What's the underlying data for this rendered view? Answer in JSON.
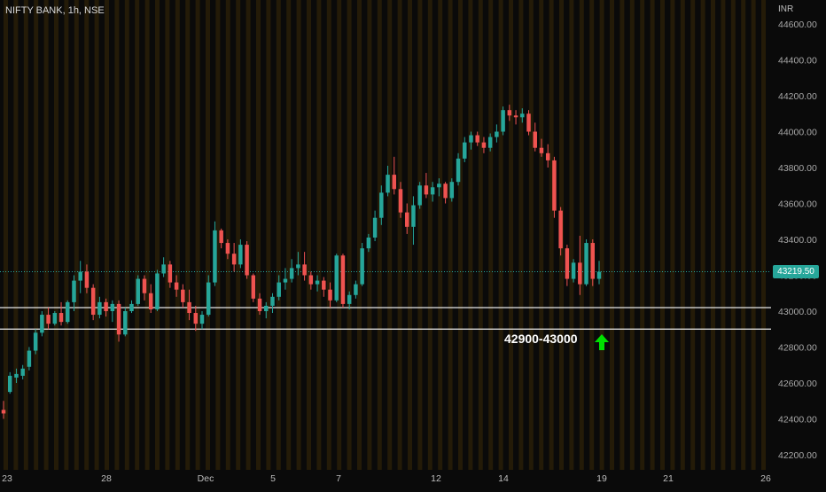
{
  "header": {
    "symbol_title": "NIFTY BANK, 1h, NSE",
    "currency": "INR"
  },
  "colors": {
    "up": "#26a69a",
    "down": "#ef5350",
    "bg": "#0a0a0a",
    "session": "#3a2a08",
    "arrow": "#00e000",
    "price_tag_bg": "#26a69a"
  },
  "annotation": {
    "text": "42900-43000",
    "icon": "up-arrow-icon"
  },
  "chart_data": {
    "type": "candlestick",
    "title": "NIFTY BANK, 1h, NSE",
    "y_unit": "INR",
    "ylim": [
      42100,
      44700
    ],
    "y_ticks": [
      "44600.00",
      "44400.00",
      "44200.00",
      "44000.00",
      "43800.00",
      "43600.00",
      "43400.00",
      "43200.00",
      "43000.00",
      "42800.00",
      "42600.00",
      "42400.00",
      "42200.00"
    ],
    "x_ticks": [
      "23",
      "28",
      "Dec",
      "5",
      "7",
      "12",
      "14",
      "19",
      "21",
      "26"
    ],
    "last_price": "43219.50",
    "support_zone": [
      42900,
      43000
    ],
    "grid": false,
    "candles": [
      [
        42450,
        42500,
        42400,
        42430
      ],
      [
        42550,
        42660,
        42540,
        42640
      ],
      [
        42630,
        42680,
        42600,
        42650
      ],
      [
        42640,
        42700,
        42620,
        42680
      ],
      [
        42690,
        42800,
        42670,
        42780
      ],
      [
        42780,
        42900,
        42760,
        42880
      ],
      [
        42880,
        43000,
        42860,
        42980
      ],
      [
        42980,
        43020,
        42900,
        42930
      ],
      [
        42930,
        43000,
        42920,
        42990
      ],
      [
        42990,
        43050,
        42920,
        42940
      ],
      [
        42940,
        43060,
        42930,
        43050
      ],
      [
        43050,
        43200,
        43000,
        43170
      ],
      [
        43170,
        43280,
        43100,
        43220
      ],
      [
        43220,
        43260,
        43100,
        43130
      ],
      [
        43130,
        43150,
        42950,
        42980
      ],
      [
        42980,
        43080,
        42960,
        43050
      ],
      [
        43050,
        43070,
        42970,
        43000
      ],
      [
        43000,
        43060,
        42940,
        43040
      ],
      [
        43040,
        43060,
        42830,
        42870
      ],
      [
        42870,
        43020,
        42860,
        43000
      ],
      [
        43000,
        43060,
        42990,
        43040
      ],
      [
        43040,
        43200,
        43030,
        43180
      ],
      [
        43180,
        43200,
        43060,
        43100
      ],
      [
        43100,
        43150,
        42990,
        43010
      ],
      [
        43010,
        43230,
        43000,
        43210
      ],
      [
        43210,
        43300,
        43190,
        43260
      ],
      [
        43260,
        43280,
        43130,
        43160
      ],
      [
        43160,
        43200,
        43080,
        43120
      ],
      [
        43120,
        43150,
        43020,
        43050
      ],
      [
        43050,
        43120,
        42950,
        42990
      ],
      [
        42990,
        43030,
        42890,
        42930
      ],
      [
        42930,
        43000,
        42900,
        42980
      ],
      [
        42980,
        43200,
        42970,
        43160
      ],
      [
        43160,
        43500,
        43140,
        43450
      ],
      [
        43450,
        43460,
        43350,
        43380
      ],
      [
        43380,
        43400,
        43290,
        43320
      ],
      [
        43320,
        43380,
        43220,
        43260
      ],
      [
        43260,
        43400,
        43240,
        43370
      ],
      [
        43370,
        43390,
        43180,
        43200
      ],
      [
        43200,
        43210,
        43050,
        43070
      ],
      [
        43070,
        43100,
        42980,
        43000
      ],
      [
        43000,
        43050,
        42960,
        43030
      ],
      [
        43030,
        43100,
        42990,
        43080
      ],
      [
        43080,
        43200,
        43060,
        43160
      ],
      [
        43160,
        43240,
        43120,
        43180
      ],
      [
        43180,
        43290,
        43160,
        43240
      ],
      [
        43240,
        43330,
        43200,
        43260
      ],
      [
        43260,
        43330,
        43170,
        43200
      ],
      [
        43200,
        43220,
        43120,
        43150
      ],
      [
        43150,
        43200,
        43110,
        43170
      ],
      [
        43170,
        43190,
        43080,
        43120
      ],
      [
        43120,
        43160,
        43020,
        43060
      ],
      [
        43060,
        43320,
        43050,
        43310
      ],
      [
        43310,
        43320,
        43020,
        43040
      ],
      [
        43040,
        43110,
        43010,
        43090
      ],
      [
        43090,
        43170,
        43070,
        43150
      ],
      [
        43150,
        43380,
        43140,
        43350
      ],
      [
        43350,
        43430,
        43330,
        43410
      ],
      [
        43410,
        43560,
        43390,
        43520
      ],
      [
        43520,
        43700,
        43480,
        43660
      ],
      [
        43660,
        43810,
        43640,
        43760
      ],
      [
        43760,
        43860,
        43650,
        43680
      ],
      [
        43680,
        43720,
        43520,
        43550
      ],
      [
        43550,
        43600,
        43430,
        43470
      ],
      [
        43470,
        43640,
        43370,
        43590
      ],
      [
        43590,
        43720,
        43570,
        43700
      ],
      [
        43700,
        43770,
        43630,
        43650
      ],
      [
        43650,
        43720,
        43610,
        43690
      ],
      [
        43690,
        43740,
        43640,
        43710
      ],
      [
        43710,
        43720,
        43600,
        43630
      ],
      [
        43630,
        43740,
        43610,
        43720
      ],
      [
        43720,
        43880,
        43700,
        43850
      ],
      [
        43850,
        43970,
        43830,
        43940
      ],
      [
        43940,
        44000,
        43900,
        43980
      ],
      [
        43980,
        44000,
        43920,
        43940
      ],
      [
        43940,
        43970,
        43880,
        43910
      ],
      [
        43910,
        43990,
        43890,
        43970
      ],
      [
        43970,
        44040,
        43940,
        44000
      ],
      [
        44000,
        44140,
        43980,
        44120
      ],
      [
        44120,
        44150,
        44060,
        44090
      ],
      [
        44090,
        44120,
        44040,
        44080
      ],
      [
        44080,
        44130,
        44050,
        44100
      ],
      [
        44100,
        44120,
        43980,
        44000
      ],
      [
        44000,
        44050,
        43890,
        43910
      ],
      [
        43910,
        43960,
        43860,
        43880
      ],
      [
        43880,
        43930,
        43800,
        43840
      ],
      [
        43840,
        43860,
        43520,
        43560
      ],
      [
        43560,
        43580,
        43310,
        43350
      ],
      [
        43350,
        43370,
        43140,
        43180
      ],
      [
        43180,
        43290,
        43160,
        43270
      ],
      [
        43270,
        43420,
        43090,
        43150
      ],
      [
        43150,
        43400,
        43140,
        43380
      ],
      [
        43380,
        43400,
        43140,
        43180
      ],
      [
        43180,
        43280,
        43150,
        43219.5
      ]
    ]
  }
}
